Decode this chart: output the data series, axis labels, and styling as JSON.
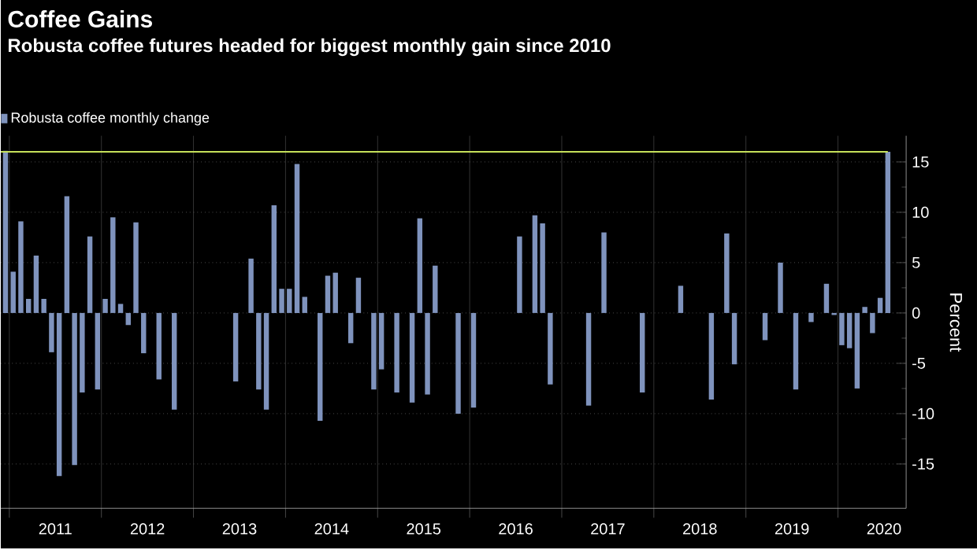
{
  "chart_data": {
    "type": "bar",
    "title": "Coffee Gains",
    "subtitle": "Robusta coffee futures headed for biggest monthly gain since 2010",
    "ylabel": "Percent",
    "x": [
      "2010-12",
      "2011-01",
      "2011-02",
      "2011-03",
      "2011-04",
      "2011-05",
      "2011-06",
      "2011-07",
      "2011-08",
      "2011-09",
      "2011-10",
      "2011-11",
      "2011-12",
      "2012-01",
      "2012-02",
      "2012-03",
      "2012-04",
      "2012-05",
      "2012-06",
      "2012-07",
      "2012-08",
      "2012-09",
      "2012-10",
      "2012-11",
      "2012-12",
      "2013-01",
      "2013-02",
      "2013-03",
      "2013-04",
      "2013-05",
      "2013-06",
      "2013-07",
      "2013-08",
      "2013-09",
      "2013-10",
      "2013-11",
      "2013-12",
      "2014-01",
      "2014-02",
      "2014-03",
      "2014-04",
      "2014-05",
      "2014-06",
      "2014-07",
      "2014-08",
      "2014-09",
      "2014-10",
      "2014-11",
      "2014-12",
      "2015-01",
      "2015-02",
      "2015-03",
      "2015-04",
      "2015-05",
      "2015-06",
      "2015-07",
      "2015-08",
      "2015-09",
      "2015-10",
      "2015-11",
      "2015-12",
      "2016-01",
      "2016-02",
      "2016-03",
      "2016-04",
      "2016-05",
      "2016-06",
      "2016-07",
      "2016-08",
      "2016-09",
      "2016-10",
      "2016-11",
      "2016-12",
      "2017-01",
      "2017-02",
      "2017-03",
      "2017-04",
      "2017-05",
      "2017-06",
      "2017-07",
      "2017-08",
      "2017-09",
      "2017-10",
      "2017-11",
      "2017-12",
      "2018-01",
      "2018-02",
      "2018-03",
      "2018-04",
      "2018-05",
      "2018-06",
      "2018-07",
      "2018-08",
      "2018-09",
      "2018-10",
      "2018-11",
      "2018-12",
      "2019-01",
      "2019-02",
      "2019-03",
      "2019-04",
      "2019-05",
      "2019-06",
      "2019-07",
      "2019-08",
      "2019-09",
      "2019-10",
      "2019-11",
      "2019-12",
      "2020-01",
      "2020-02",
      "2020-03",
      "2020-04",
      "2020-05",
      "2020-06",
      "2020-07"
    ],
    "series": [
      {
        "name": "Robusta coffee monthly change",
        "color": "#7f93bd",
        "values": [
          16.1,
          4.1,
          9.1,
          1.4,
          5.7,
          1.4,
          -3.9,
          -16.2,
          11.6,
          -15.1,
          -7.9,
          7.6,
          -7.6,
          1.4,
          9.5,
          0.9,
          -1.2,
          9.0,
          -4,
          null,
          -6.6,
          null,
          -9.6,
          null,
          null,
          null,
          null,
          null,
          null,
          null,
          -6.8,
          null,
          5.4,
          -7.6,
          -9.6,
          10.7,
          2.4,
          2.4,
          14.8,
          1.6,
          null,
          -10.7,
          3.7,
          4.0,
          null,
          -3.0,
          3.5,
          null,
          -7.6,
          -5.6,
          null,
          -7.9,
          null,
          -8.9,
          9.4,
          -8.1,
          4.7,
          null,
          null,
          -10,
          null,
          -9.4,
          null,
          null,
          null,
          null,
          null,
          7.6,
          null,
          9.7,
          8.9,
          -7.1,
          null,
          null,
          null,
          null,
          -9.2,
          null,
          8.0,
          null,
          null,
          null,
          null,
          -7.9,
          null,
          null,
          null,
          null,
          2.7,
          null,
          null,
          null,
          -8.6,
          null,
          7.9,
          -5.1,
          null,
          null,
          null,
          -2.7,
          null,
          5.0,
          null,
          -7.6,
          null,
          -0.9,
          null,
          2.9,
          -0.2,
          -3.2,
          -3.5,
          -7.5,
          0.6,
          -2.0,
          1.5,
          16.0
        ]
      }
    ],
    "xlim": [
      "2010-11-28",
      "2020-09-28"
    ],
    "xticks": [
      {
        "value": "2011-01-01",
        "label": null
      },
      {
        "value": "2011-07-01",
        "label": "2011"
      },
      {
        "value": "2012-01-01",
        "label": null
      },
      {
        "value": "2012-07-01",
        "label": "2012"
      },
      {
        "value": "2013-01-01",
        "label": null
      },
      {
        "value": "2013-07-01",
        "label": "2013"
      },
      {
        "value": "2014-01-01",
        "label": null
      },
      {
        "value": "2014-07-01",
        "label": "2014"
      },
      {
        "value": "2015-01-01",
        "label": null
      },
      {
        "value": "2015-07-01",
        "label": "2015"
      },
      {
        "value": "2016-01-01",
        "label": null
      },
      {
        "value": "2016-07-01",
        "label": "2016"
      },
      {
        "value": "2017-01-01",
        "label": null
      },
      {
        "value": "2017-07-01",
        "label": "2017"
      },
      {
        "value": "2018-01-01",
        "label": null
      },
      {
        "value": "2018-07-01",
        "label": "2018"
      },
      {
        "value": "2019-01-01",
        "label": null
      },
      {
        "value": "2019-07-01",
        "label": "2019"
      },
      {
        "value": "2020-01-01",
        "label": null
      },
      {
        "value": "2020-07-01",
        "label": "2020"
      }
    ],
    "ylim": [
      -19.4,
      17.6
    ],
    "yticks": [
      -15,
      -10,
      -5,
      0,
      5,
      10,
      15
    ],
    "ref_lines": [
      {
        "axis": "y",
        "value": 16.0,
        "color": "#c6e05a"
      }
    ],
    "grid": true,
    "legend": "top left"
  }
}
